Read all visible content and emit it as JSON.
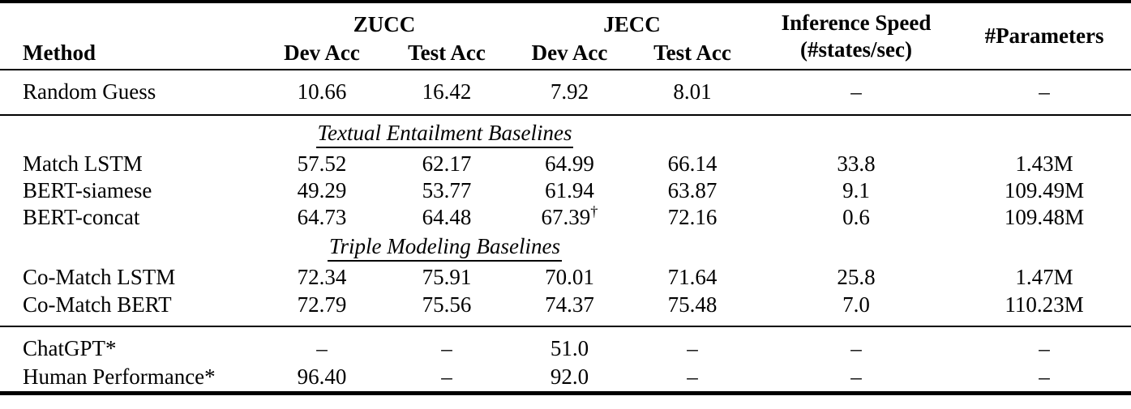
{
  "colors": {
    "text": "#000000",
    "background": "#ffffff",
    "rules": "#000000"
  },
  "header": {
    "method": "Method",
    "group_zucc": "ZUCC",
    "group_jecc": "JECC",
    "sub_zucc_dev": "Dev Acc",
    "sub_zucc_test": "Test Acc",
    "sub_jecc_dev": "Dev Acc",
    "sub_jecc_test": "Test Acc",
    "inference_line1": "Inference Speed",
    "inference_line2": "(#states/sec)",
    "parameters": "#Parameters"
  },
  "sections": {
    "textual": "Textual Entailment Baselines",
    "triple": "Triple Modeling Baselines"
  },
  "rows": [
    {
      "method": "Random Guess",
      "zucc_dev": "10.66",
      "zucc_test": "16.42",
      "jecc_dev": "7.92",
      "jecc_test": "8.01",
      "inference": "–",
      "parameters": "–"
    },
    {
      "method": "Match LSTM",
      "zucc_dev": "57.52",
      "zucc_test": "62.17",
      "jecc_dev": "64.99",
      "jecc_test": "66.14",
      "inference": "33.8",
      "parameters": "1.43M"
    },
    {
      "method": "BERT-siamese",
      "zucc_dev": "49.29",
      "zucc_test": "53.77",
      "jecc_dev": "61.94",
      "jecc_test": "63.87",
      "inference": "9.1",
      "parameters": "109.49M"
    },
    {
      "method": "BERT-concat",
      "zucc_dev": "64.73",
      "zucc_test": "64.48",
      "jecc_dev": "67.39",
      "jecc_dev_sup": "†",
      "jecc_test": "72.16",
      "inference": "0.6",
      "parameters": "109.48M"
    },
    {
      "method": "Co-Match LSTM",
      "zucc_dev": "72.34",
      "zucc_test": "75.91",
      "jecc_dev": "70.01",
      "jecc_test": "71.64",
      "inference": "25.8",
      "parameters": "1.47M"
    },
    {
      "method": "Co-Match BERT",
      "zucc_dev": "72.79",
      "zucc_test": "75.56",
      "jecc_dev": "74.37",
      "jecc_test": "75.48",
      "inference": "7.0",
      "parameters": "110.23M"
    },
    {
      "method": "ChatGPT*",
      "zucc_dev": "–",
      "zucc_test": "–",
      "jecc_dev": "51.0",
      "jecc_test": "–",
      "inference": "–",
      "parameters": "–"
    },
    {
      "method": "Human Performance*",
      "zucc_dev": "96.40",
      "zucc_test": "–",
      "jecc_dev": "92.0",
      "jecc_test": "–",
      "inference": "–",
      "parameters": "–"
    }
  ],
  "chart_data": {
    "type": "table",
    "title": "",
    "columns": [
      "Method",
      "ZUCC Dev Acc",
      "ZUCC Test Acc",
      "JECC Dev Acc",
      "JECC Test Acc",
      "Inference Speed (#states/sec)",
      "#Parameters"
    ],
    "section_groups": [
      {
        "section": "",
        "methods": [
          "Random Guess"
        ]
      },
      {
        "section": "Textual Entailment Baselines",
        "methods": [
          "Match LSTM",
          "BERT-siamese",
          "BERT-concat"
        ]
      },
      {
        "section": "Triple Modeling Baselines",
        "methods": [
          "Co-Match LSTM",
          "Co-Match BERT"
        ]
      },
      {
        "section": "",
        "methods": [
          "ChatGPT*",
          "Human Performance*"
        ]
      }
    ]
  }
}
